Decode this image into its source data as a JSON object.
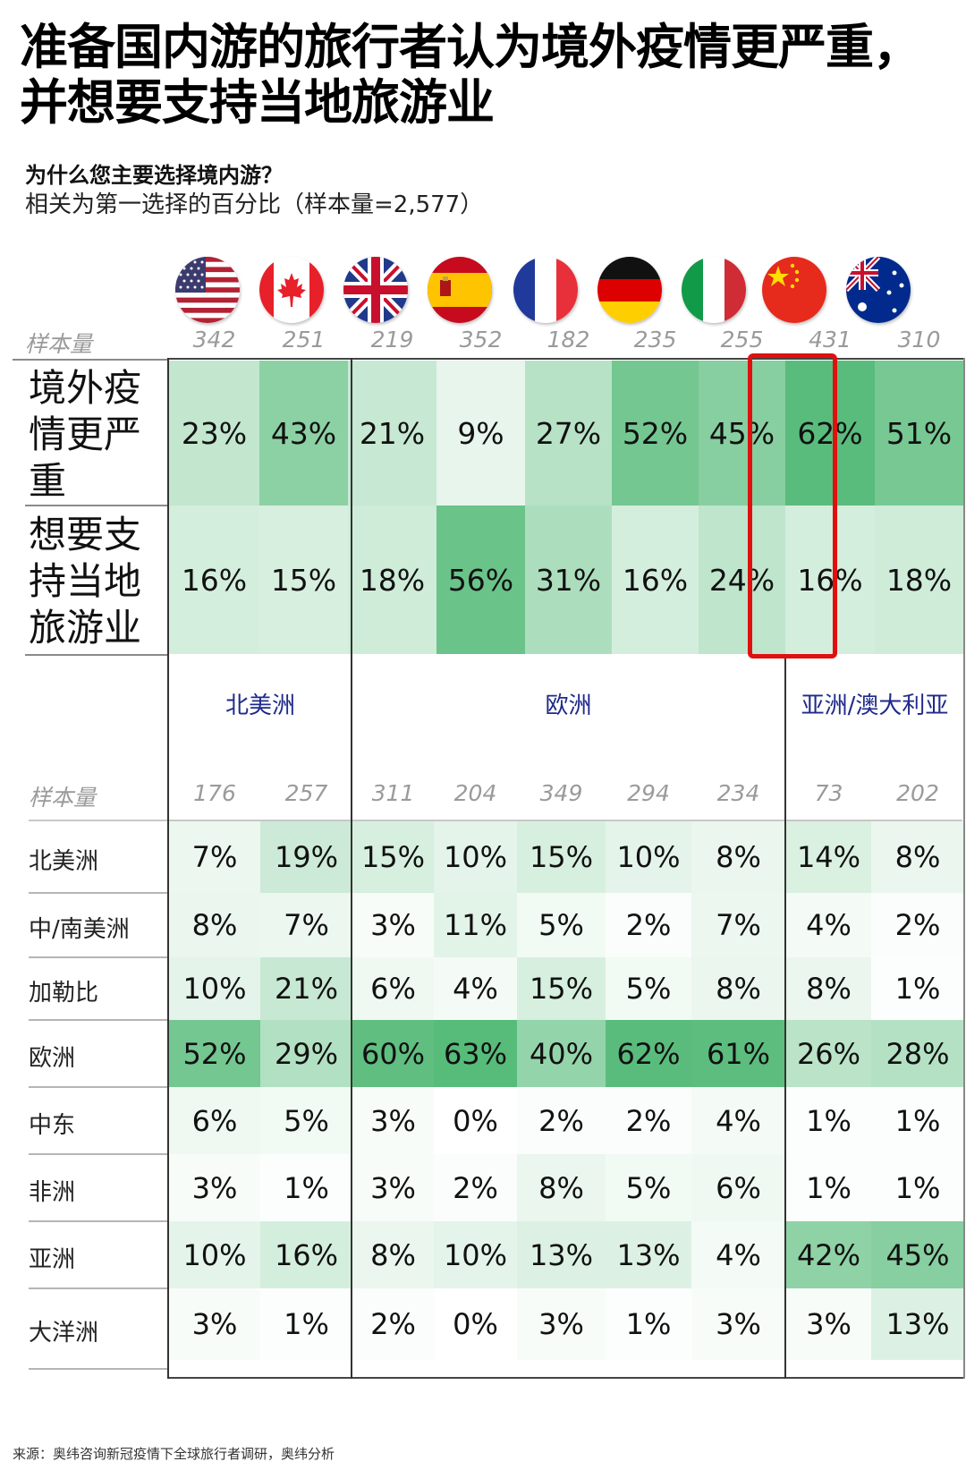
{
  "header": {
    "title_line1": "准备国内游的旅行者认为境外疫情更严重，",
    "title_line2": "并想要支持当地旅游业",
    "question": "为什么您主要选择境内游？",
    "subtitle": "相关为第一选择的百分比（样本量=2,577）"
  },
  "colors": {
    "heat_low": "#ffffff",
    "heat_high": "#57bb7a",
    "highlight": "#e01010",
    "region_text": "#1f2a8a"
  },
  "flags": [
    {
      "country": "USA",
      "icon": "us-flag-icon"
    },
    {
      "country": "Canada",
      "icon": "canada-flag-icon"
    },
    {
      "country": "UK",
      "icon": "uk-flag-icon"
    },
    {
      "country": "Spain",
      "icon": "spain-flag-icon"
    },
    {
      "country": "France",
      "icon": "france-flag-icon"
    },
    {
      "country": "Germany",
      "icon": "germany-flag-icon"
    },
    {
      "country": "Italy",
      "icon": "italy-flag-icon"
    },
    {
      "country": "China",
      "icon": "china-flag-icon"
    },
    {
      "country": "Australia",
      "icon": "australia-flag-icon"
    }
  ],
  "top_table": {
    "sample_label": "样本量",
    "samples": [
      "342",
      "251",
      "219",
      "352",
      "182",
      "235",
      "255",
      "431",
      "310"
    ],
    "rows": [
      {
        "label": "境外疫情更严重",
        "label_lines": [
          "境外疫",
          "情更严",
          "重"
        ],
        "values": [
          "23%",
          "43%",
          "21%",
          "9%",
          "27%",
          "52%",
          "45%",
          "62%",
          "51%"
        ]
      },
      {
        "label": "想要支持当地旅游业",
        "label_lines": [
          "想要支",
          "持当地",
          "旅游业"
        ],
        "values": [
          "16%",
          "15%",
          "18%",
          "56%",
          "31%",
          "16%",
          "24%",
          "16%",
          "18%"
        ]
      }
    ],
    "highlighted_column": 7
  },
  "regions": [
    {
      "label": "北美洲"
    },
    {
      "label": "欧洲"
    },
    {
      "label": "亚洲/澳大利亚"
    }
  ],
  "bottom_table": {
    "sample_label": "样本量",
    "samples": [
      "176",
      "257",
      "311",
      "204",
      "349",
      "294",
      "234",
      "73",
      "202"
    ],
    "rows": [
      {
        "label": "北美洲",
        "values": [
          "7%",
          "19%",
          "15%",
          "10%",
          "15%",
          "10%",
          "8%",
          "14%",
          "8%"
        ]
      },
      {
        "label": "中/南美洲",
        "values": [
          "8%",
          "7%",
          "3%",
          "11%",
          "5%",
          "2%",
          "7%",
          "4%",
          "2%"
        ]
      },
      {
        "label": "加勒比",
        "values": [
          "10%",
          "21%",
          "6%",
          "4%",
          "15%",
          "5%",
          "8%",
          "8%",
          "1%"
        ]
      },
      {
        "label": "欧洲",
        "values": [
          "52%",
          "29%",
          "60%",
          "63%",
          "40%",
          "62%",
          "61%",
          "26%",
          "28%"
        ]
      },
      {
        "label": "中东",
        "values": [
          "6%",
          "5%",
          "3%",
          "0%",
          "2%",
          "2%",
          "4%",
          "1%",
          "1%"
        ]
      },
      {
        "label": "非洲",
        "values": [
          "3%",
          "1%",
          "3%",
          "2%",
          "8%",
          "5%",
          "6%",
          "1%",
          "1%"
        ]
      },
      {
        "label": "亚洲",
        "values": [
          "10%",
          "16%",
          "8%",
          "10%",
          "13%",
          "13%",
          "4%",
          "42%",
          "45%"
        ]
      },
      {
        "label": "大洋洲",
        "values": [
          "3%",
          "1%",
          "2%",
          "0%",
          "3%",
          "1%",
          "3%",
          "3%",
          "13%"
        ]
      }
    ]
  },
  "footer": {
    "source": "来源：奥纬咨询新冠疫情下全球旅行者调研，奥纬分析"
  },
  "chart_data": {
    "type": "heatmap",
    "title": "准备国内游的旅行者认为境外疫情更严重，并想要支持当地旅游业",
    "subtitle": "为什么您主要选择境内游？ 相关为第一选择的百分比（样本量=2,577）",
    "columns": [
      "USA",
      "Canada",
      "UK",
      "Spain",
      "France",
      "Germany",
      "Italy",
      "China",
      "Australia"
    ],
    "column_groups": [
      {
        "name": "北美洲",
        "columns": [
          "USA",
          "Canada"
        ]
      },
      {
        "name": "欧洲",
        "columns": [
          "UK",
          "Spain",
          "France",
          "Germany",
          "Italy"
        ]
      },
      {
        "name": "亚洲/澳大利亚",
        "columns": [
          "China",
          "Australia"
        ]
      }
    ],
    "tables": [
      {
        "name": "reasons",
        "sample_sizes": [
          342,
          251,
          219,
          352,
          182,
          235,
          255,
          431,
          310
        ],
        "series": [
          {
            "name": "境外疫情更严重",
            "values": [
              23,
              43,
              21,
              9,
              27,
              52,
              45,
              62,
              51
            ]
          },
          {
            "name": "想要支持当地旅游业",
            "values": [
              16,
              15,
              18,
              56,
              31,
              16,
              24,
              16,
              18
            ]
          }
        ],
        "highlight_column": "China"
      },
      {
        "name": "destinations",
        "sample_sizes": [
          176,
          257,
          311,
          204,
          349,
          294,
          234,
          73,
          202
        ],
        "series": [
          {
            "name": "北美洲",
            "values": [
              7,
              19,
              15,
              10,
              15,
              10,
              8,
              14,
              8
            ]
          },
          {
            "name": "中/南美洲",
            "values": [
              8,
              7,
              3,
              11,
              5,
              2,
              7,
              4,
              2
            ]
          },
          {
            "name": "加勒比",
            "values": [
              10,
              21,
              6,
              4,
              15,
              5,
              8,
              8,
              1
            ]
          },
          {
            "name": "欧洲",
            "values": [
              52,
              29,
              60,
              63,
              40,
              62,
              61,
              26,
              28
            ]
          },
          {
            "name": "中东",
            "values": [
              6,
              5,
              3,
              0,
              2,
              2,
              4,
              1,
              1
            ]
          },
          {
            "name": "非洲",
            "values": [
              3,
              1,
              3,
              2,
              8,
              5,
              6,
              1,
              1
            ]
          },
          {
            "name": "亚洲",
            "values": [
              10,
              16,
              8,
              10,
              13,
              13,
              4,
              42,
              45
            ]
          },
          {
            "name": "大洋洲",
            "values": [
              3,
              1,
              2,
              0,
              3,
              1,
              3,
              3,
              13
            ]
          }
        ]
      }
    ],
    "unit": "%",
    "color_scale": [
      "#ffffff",
      "#57bb7a"
    ]
  }
}
